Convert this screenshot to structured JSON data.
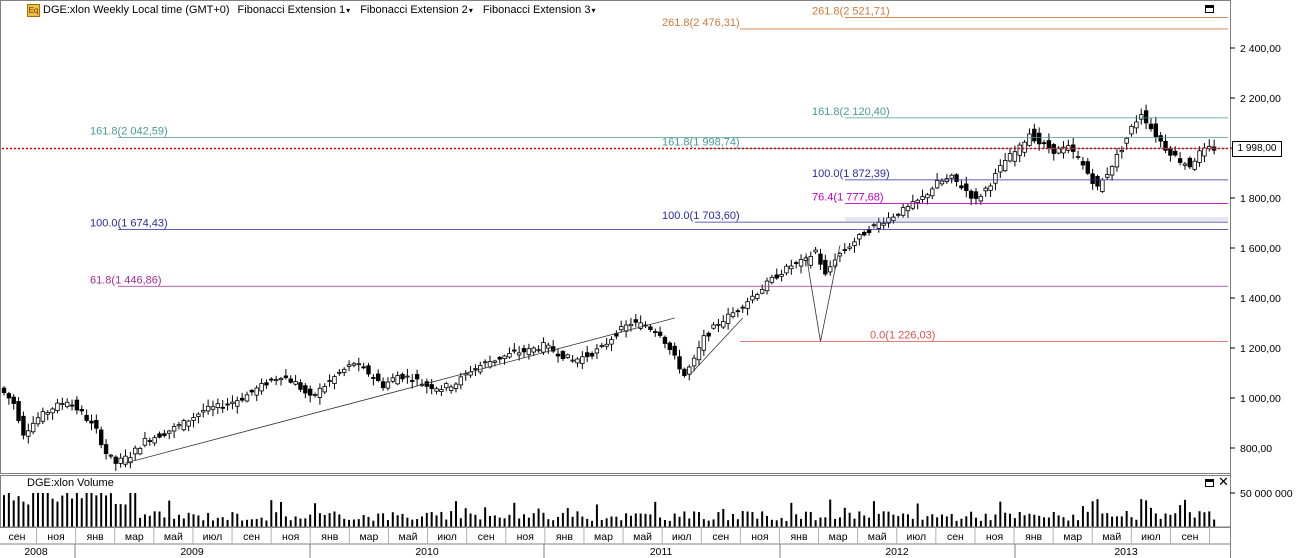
{
  "header": {
    "logo_text": "Eq",
    "title": "DGE:xlon Weekly Local time (GMT+0)",
    "studies": [
      "Fibonacci Extension 1",
      "Fibonacci Extension 2",
      "Fibonacci Extension 3"
    ]
  },
  "volume_panel": {
    "title": "DGE:xlon Volume",
    "tick_label": "50 000 000"
  },
  "current_price": "1 998,00",
  "colors": {
    "candle": "#000000",
    "current_line": "#e00000",
    "fib_0": "#e05050",
    "fib_61_8": "#9a2a9a",
    "fib_76_4": "#c000c0",
    "fib_100": "#2a2aa0",
    "fib_161_8": "#4a9a9a",
    "fib_261_8": "#d07a3a"
  },
  "chart_data": {
    "type": "candlestick",
    "interval": "Weekly",
    "y_axis": {
      "ylim": [
        700,
        2600
      ],
      "ticks": [
        800,
        1000,
        1200,
        1400,
        1600,
        1800,
        2000,
        2200,
        2400
      ],
      "tick_labels": [
        "800,00",
        "1 000,00",
        "1 200,00",
        "1 400,00",
        "1 600,00",
        "1 800,00",
        "2 000,00",
        "2 200,00",
        "2 400,00"
      ]
    },
    "x_axis": {
      "month_labels": [
        "сен",
        "ноя",
        "янв",
        "мар",
        "май",
        "июл",
        "сен",
        "ноя",
        "янв",
        "мар",
        "май",
        "июл",
        "сен",
        "ноя",
        "янв",
        "мар",
        "май",
        "июл",
        "сен",
        "ноя",
        "янв",
        "мар",
        "май",
        "июл",
        "сен",
        "ноя",
        "янв",
        "мар",
        "май",
        "июл",
        "сен"
      ],
      "year_labels": [
        "2008",
        "2009",
        "2010",
        "2011",
        "2012",
        "2013"
      ]
    },
    "price_path": [
      [
        0,
        1040
      ],
      [
        3,
        980
      ],
      [
        5,
        860
      ],
      [
        8,
        920
      ],
      [
        11,
        960
      ],
      [
        14,
        990
      ],
      [
        17,
        940
      ],
      [
        20,
        870
      ],
      [
        22,
        780
      ],
      [
        24,
        740
      ],
      [
        27,
        770
      ],
      [
        30,
        830
      ],
      [
        34,
        860
      ],
      [
        38,
        900
      ],
      [
        42,
        950
      ],
      [
        46,
        970
      ],
      [
        50,
        1000
      ],
      [
        55,
        1060
      ],
      [
        58,
        1090
      ],
      [
        61,
        1060
      ],
      [
        64,
        1000
      ],
      [
        67,
        1050
      ],
      [
        70,
        1100
      ],
      [
        73,
        1140
      ],
      [
        76,
        1100
      ],
      [
        79,
        1050
      ],
      [
        82,
        1090
      ],
      [
        85,
        1080
      ],
      [
        88,
        1050
      ],
      [
        91,
        1040
      ],
      [
        94,
        1060
      ],
      [
        97,
        1110
      ],
      [
        100,
        1140
      ],
      [
        103,
        1160
      ],
      [
        106,
        1180
      ],
      [
        109,
        1190
      ],
      [
        112,
        1210
      ],
      [
        115,
        1180
      ],
      [
        118,
        1150
      ],
      [
        121,
        1170
      ],
      [
        124,
        1200
      ],
      [
        127,
        1260
      ],
      [
        130,
        1300
      ],
      [
        133,
        1290
      ],
      [
        136,
        1260
      ],
      [
        139,
        1160
      ],
      [
        141,
        1090
      ],
      [
        143,
        1150
      ],
      [
        145,
        1240
      ],
      [
        148,
        1300
      ],
      [
        151,
        1340
      ],
      [
        154,
        1390
      ],
      [
        157,
        1440
      ],
      [
        160,
        1490
      ],
      [
        163,
        1530
      ],
      [
        166,
        1550
      ],
      [
        168,
        1590
      ],
      [
        170,
        1490
      ],
      [
        172,
        1560
      ],
      [
        175,
        1610
      ],
      [
        178,
        1660
      ],
      [
        181,
        1700
      ],
      [
        184,
        1730
      ],
      [
        187,
        1760
      ],
      [
        190,
        1800
      ],
      [
        193,
        1860
      ],
      [
        196,
        1880
      ],
      [
        199,
        1830
      ],
      [
        201,
        1790
      ],
      [
        204,
        1860
      ],
      [
        207,
        1950
      ],
      [
        210,
        2000
      ],
      [
        212,
        2060
      ],
      [
        214,
        2020
      ],
      [
        217,
        1990
      ],
      [
        220,
        2000
      ],
      [
        222,
        1960
      ],
      [
        224,
        1900
      ],
      [
        226,
        1840
      ],
      [
        228,
        1900
      ],
      [
        231,
        2000
      ],
      [
        233,
        2080
      ],
      [
        235,
        2140
      ],
      [
        237,
        2080
      ],
      [
        240,
        2000
      ],
      [
        243,
        1950
      ],
      [
        245,
        1930
      ],
      [
        247,
        1980
      ],
      [
        249,
        1998
      ]
    ],
    "current_price": 1998.0,
    "fibonacci_levels": [
      {
        "label": "261.8(2 476,31)",
        "value": 2476.31,
        "level": "261.8"
      },
      {
        "label": "261.8(2 521,71)",
        "value": 2521.71,
        "level": "261.8"
      },
      {
        "label": "161.8(2 120,40)",
        "value": 2120.4,
        "level": "161.8"
      },
      {
        "label": "161.8(2 042,59)",
        "value": 2042.59,
        "level": "161.8"
      },
      {
        "label": "161.8(1 998,74)",
        "value": 1998.74,
        "level": "161.8"
      },
      {
        "label": "100.0(1 872,39)",
        "value": 1872.39,
        "level": "100"
      },
      {
        "label": "76.4(1 777,68)",
        "value": 1777.68,
        "level": "76.4"
      },
      {
        "label": "100.0(1 703,60)",
        "value": 1703.6,
        "level": "100"
      },
      {
        "label": "100.0(1 674,43)",
        "value": 1674.43,
        "level": "100"
      },
      {
        "label": "61.8(1 446,86)",
        "value": 1446.86,
        "level": "61.8"
      },
      {
        "label": "0.0(1 226,03)",
        "value": 1226.03,
        "level": "0"
      }
    ],
    "extension_lines": [
      {
        "points": [
          [
            25,
            740
          ],
          [
            138,
            1320
          ]
        ]
      },
      {
        "points": [
          [
            141,
            1090
          ],
          [
            152,
            1320
          ]
        ]
      },
      {
        "points": [
          [
            165,
            1580
          ],
          [
            168,
            1226
          ],
          [
            172,
            1610
          ]
        ]
      }
    ]
  }
}
